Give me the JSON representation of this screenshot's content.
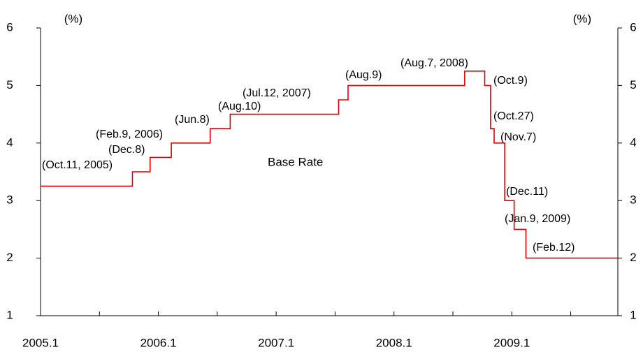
{
  "chart_data": {
    "type": "line",
    "step": "post",
    "ylabel": "(%)",
    "y2label": "(%)",
    "annotation": "Base Rate",
    "series": [
      {
        "name": "Base Rate",
        "color": "#e00000",
        "x": [
          2005.0,
          2005.78,
          2005.93,
          2006.11,
          2006.44,
          2006.61,
          2007.53,
          2007.61,
          2008.6,
          2008.77,
          2008.82,
          2008.85,
          2008.94,
          2009.02,
          2009.12,
          2009.9
        ],
        "values": [
          3.25,
          3.5,
          3.75,
          4,
          4.25,
          4.5,
          4.75,
          5,
          5.25,
          5,
          4.25,
          4,
          3,
          2.5,
          2,
          2
        ]
      }
    ],
    "event_labels": [
      "(Oct.11, 2005)",
      "(Dec.8)",
      "(Feb.9, 2006)",
      "(Jun.8)",
      "(Aug.10)",
      "(Jul.12, 2007)",
      "(Aug.9)",
      "(Aug.7, 2008)",
      "(Oct.9)",
      "(Oct.27)",
      "(Nov.7)",
      "(Dec.11)",
      "(Jan.9, 2009)",
      "(Feb.12)"
    ],
    "xlim": [
      2005.0,
      2009.9
    ],
    "xticks": [
      {
        "value": 2005.0,
        "label": "2005.1"
      },
      {
        "value": 2006.0,
        "label": "2006.1"
      },
      {
        "value": 2007.0,
        "label": "2007.1"
      },
      {
        "value": 2008.0,
        "label": "2008.1"
      },
      {
        "value": 2009.0,
        "label": "2009.1"
      }
    ],
    "xminorticks": [
      2005.5,
      2006.5,
      2007.5,
      2008.5,
      2009.5
    ],
    "ylim": [
      1,
      6
    ],
    "yticks": [
      1,
      2,
      3,
      4,
      5,
      6
    ],
    "y2lim": [
      1,
      6
    ],
    "y2ticks": [
      1,
      2,
      3,
      4,
      5,
      6
    ]
  }
}
